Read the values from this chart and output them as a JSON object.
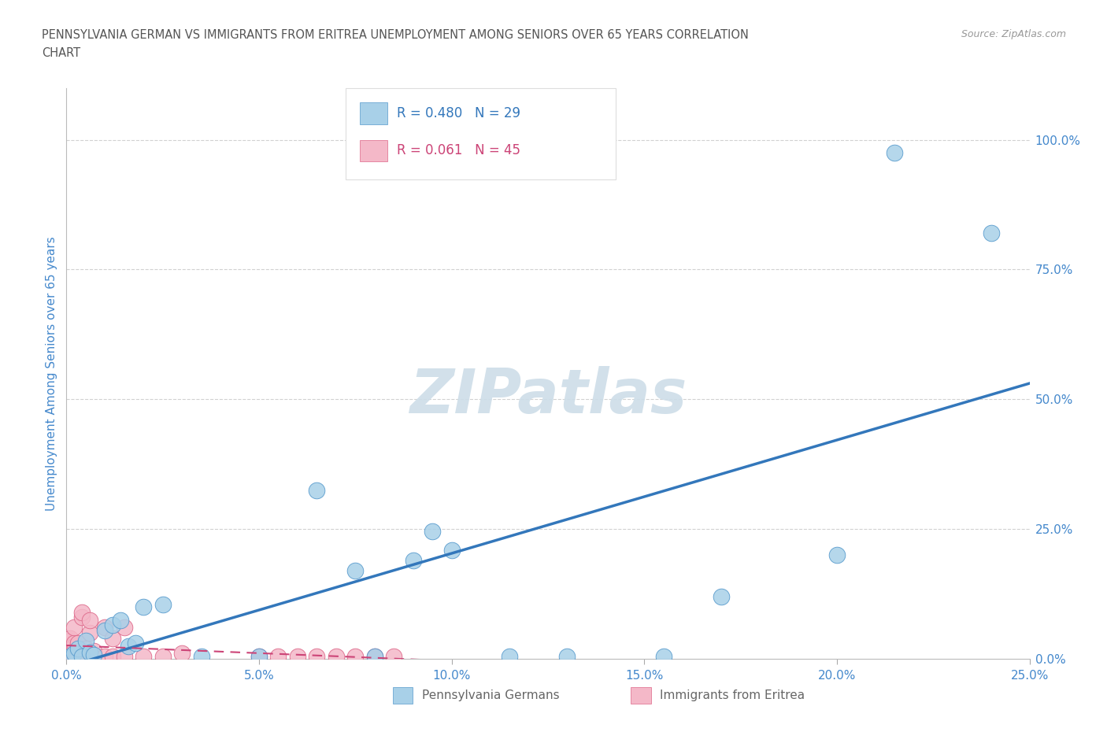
{
  "title_line1": "PENNSYLVANIA GERMAN VS IMMIGRANTS FROM ERITREA UNEMPLOYMENT AMONG SENIORS OVER 65 YEARS CORRELATION",
  "title_line2": "CHART",
  "source": "Source: ZipAtlas.com",
  "ylabel": "Unemployment Among Seniors over 65 years",
  "blue_label": "Pennsylvania Germans",
  "pink_label": "Immigrants from Eritrea",
  "blue_R": 0.48,
  "blue_N": 29,
  "pink_R": 0.061,
  "pink_N": 45,
  "blue_color": "#a8d0e8",
  "pink_color": "#f4b8c8",
  "blue_edge_color": "#5599cc",
  "pink_edge_color": "#dd6688",
  "blue_line_color": "#3377bb",
  "pink_line_color": "#cc4477",
  "watermark_color": "#cddde8",
  "xlim": [
    0.0,
    0.25
  ],
  "ylim": [
    0.0,
    1.1
  ],
  "xticks": [
    0.0,
    0.05,
    0.1,
    0.15,
    0.2,
    0.25
  ],
  "yticks": [
    0.0,
    0.25,
    0.5,
    0.75,
    1.0
  ],
  "blue_x": [
    0.001,
    0.002,
    0.003,
    0.004,
    0.005,
    0.006,
    0.007,
    0.01,
    0.012,
    0.014,
    0.016,
    0.018,
    0.02,
    0.025,
    0.035,
    0.05,
    0.065,
    0.075,
    0.08,
    0.09,
    0.095,
    0.1,
    0.115,
    0.13,
    0.155,
    0.17,
    0.2,
    0.215,
    0.24
  ],
  "blue_y": [
    0.005,
    0.01,
    0.02,
    0.005,
    0.035,
    0.012,
    0.008,
    0.055,
    0.065,
    0.075,
    0.025,
    0.03,
    0.1,
    0.105,
    0.005,
    0.005,
    0.325,
    0.17,
    0.005,
    0.19,
    0.245,
    0.21,
    0.005,
    0.005,
    0.005,
    0.12,
    0.2,
    0.975,
    0.82
  ],
  "pink_x": [
    0.001,
    0.001,
    0.001,
    0.001,
    0.001,
    0.001,
    0.001,
    0.001,
    0.001,
    0.001,
    0.002,
    0.002,
    0.002,
    0.002,
    0.002,
    0.002,
    0.003,
    0.003,
    0.003,
    0.004,
    0.004,
    0.005,
    0.005,
    0.005,
    0.006,
    0.006,
    0.007,
    0.007,
    0.01,
    0.01,
    0.012,
    0.012,
    0.015,
    0.015,
    0.02,
    0.025,
    0.03,
    0.05,
    0.055,
    0.06,
    0.065,
    0.07,
    0.075,
    0.08,
    0.085
  ],
  "pink_y": [
    0.005,
    0.008,
    0.01,
    0.02,
    0.025,
    0.035,
    0.002,
    0.012,
    0.04,
    0.003,
    0.003,
    0.008,
    0.015,
    0.025,
    0.03,
    0.06,
    0.005,
    0.015,
    0.03,
    0.08,
    0.09,
    0.01,
    0.02,
    0.003,
    0.05,
    0.075,
    0.003,
    0.015,
    0.005,
    0.06,
    0.04,
    0.005,
    0.005,
    0.06,
    0.005,
    0.005,
    0.01,
    0.005,
    0.005,
    0.005,
    0.005,
    0.005,
    0.005,
    0.005,
    0.005
  ],
  "background_color": "#ffffff",
  "grid_color": "#cccccc",
  "title_color": "#555555",
  "tick_label_color": "#4488cc"
}
